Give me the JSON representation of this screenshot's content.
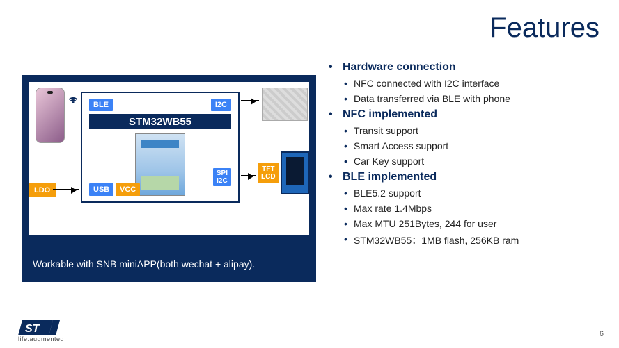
{
  "title": "Features",
  "diagram": {
    "mcu_label": "STM32WB55",
    "chips": {
      "ble": "BLE",
      "i2c": "I2C",
      "usb": "USB",
      "vcc": "VCC",
      "spi": "SPI\nI2C"
    },
    "ldo_label": "LDO",
    "tft_label": "TFT\nLCD",
    "caption": "Workable with SNB miniAPP(both wechat + alipay).",
    "colors": {
      "panel_bg": "#0a2a5c",
      "chip_blue": "#3b82f6",
      "chip_amber": "#f59e0b"
    }
  },
  "bullets": [
    {
      "level": 1,
      "text": "Hardware connection"
    },
    {
      "level": 2,
      "text": "NFC connected with I2C interface"
    },
    {
      "level": 2,
      "text": "Data transferred via BLE with phone"
    },
    {
      "level": 1,
      "text": "NFC implemented"
    },
    {
      "level": 2,
      "text": "Transit support"
    },
    {
      "level": 2,
      "text": "Smart Access support"
    },
    {
      "level": 2,
      "text": "Car Key support"
    },
    {
      "level": 1,
      "text": "BLE implemented"
    },
    {
      "level": 2,
      "text": "BLE5.2 support"
    },
    {
      "level": 2,
      "text": "Max rate 1.4Mbps"
    },
    {
      "level": 2,
      "text": "Max MTU 251Bytes, 244 for user"
    },
    {
      "level": 2,
      "text": "STM32WB55：1MB flash, 256KB ram"
    }
  ],
  "footer": {
    "tagline": "life.augmented",
    "page": "6"
  },
  "style": {
    "title_color": "#0a2a5c",
    "body_color": "#222222",
    "title_fontsize": 40
  }
}
